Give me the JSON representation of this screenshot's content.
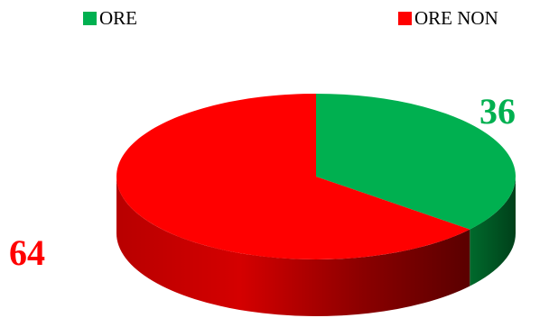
{
  "chart_data": {
    "type": "pie",
    "title": "",
    "categories": [
      "ORE",
      "ORE NON"
    ],
    "values": [
      36,
      64
    ],
    "colors": [
      "#00b050",
      "#ff0000"
    ],
    "data_labels": [
      "36",
      "64"
    ],
    "legend_position": "top",
    "style": "3d"
  }
}
